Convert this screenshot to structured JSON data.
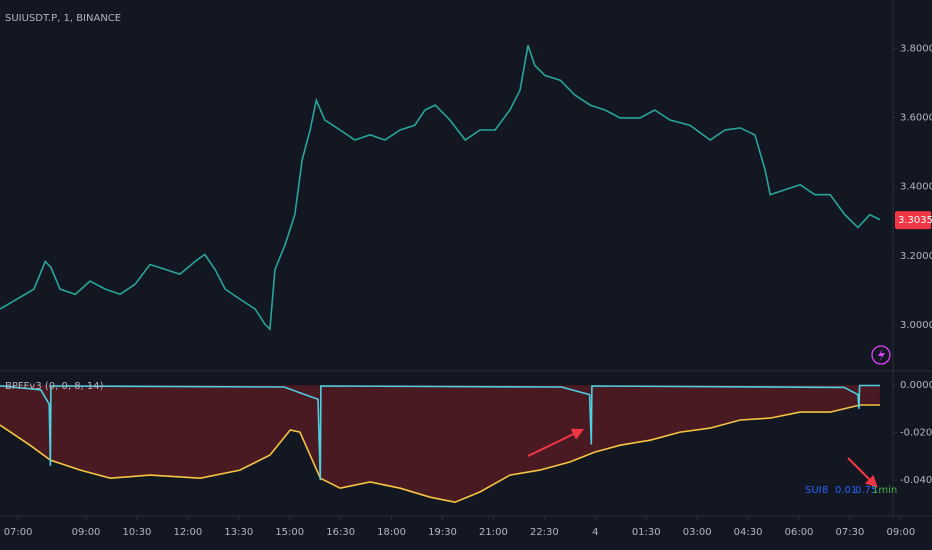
{
  "chart_data": [
    {
      "type": "line",
      "title": "SUIUSDT.P, 1, BINANCE",
      "color": "#26a69a",
      "x": [
        -32,
        -2,
        28,
        48,
        58,
        74,
        101,
        127,
        154,
        180,
        207,
        233,
        260,
        286,
        313,
        330,
        348,
        366,
        392,
        419,
        436,
        445,
        454,
        472,
        489,
        502,
        516,
        527,
        542,
        569,
        595,
        622,
        648,
        675,
        701,
        719,
        737,
        763,
        790,
        816,
        843,
        869,
        887,
        901,
        913,
        931,
        958,
        984,
        1011,
        1037,
        1064,
        1099,
        1125,
        1152,
        1187,
        1223,
        1249,
        1276,
        1302,
        1320,
        1329,
        1355,
        1382,
        1408,
        1435,
        1461,
        1484,
        1505,
        1523
      ],
      "values": [
        3.046,
        3.075,
        3.104,
        3.184,
        3.167,
        3.104,
        3.089,
        3.127,
        3.104,
        3.089,
        3.118,
        3.175,
        3.161,
        3.147,
        3.184,
        3.204,
        3.161,
        3.104,
        3.075,
        3.046,
        3.003,
        2.988,
        3.161,
        3.233,
        3.319,
        3.478,
        3.564,
        3.65,
        3.593,
        3.564,
        3.535,
        3.55,
        3.535,
        3.564,
        3.578,
        3.622,
        3.636,
        3.593,
        3.535,
        3.564,
        3.564,
        3.622,
        3.679,
        3.809,
        3.751,
        3.722,
        3.708,
        3.665,
        3.636,
        3.622,
        3.599,
        3.599,
        3.622,
        3.593,
        3.578,
        3.535,
        3.564,
        3.57,
        3.55,
        3.449,
        3.377,
        3.391,
        3.406,
        3.377,
        3.377,
        3.319,
        3.282,
        3.319,
        3.305
      ],
      "last_price": 3.3035,
      "last_price_color": "#f23645",
      "xlim": [
        -32,
        1615
      ],
      "ylim": [
        2.87,
        3.94
      ],
      "yticks": [
        {
          "value": 3.0,
          "label": "3.0000"
        },
        {
          "value": 3.2,
          "label": "3.2000"
        },
        {
          "value": 3.4,
          "label": "3.4000"
        },
        {
          "value": 3.6,
          "label": "3.6000"
        },
        {
          "value": 3.8,
          "label": "3.8000"
        }
      ],
      "xticks": [
        {
          "value": 0,
          "label": "07:00"
        },
        {
          "value": 120,
          "label": "09:00"
        },
        {
          "value": 210,
          "label": "10:30"
        },
        {
          "value": 300,
          "label": "12:00"
        },
        {
          "value": 390,
          "label": "13:30"
        },
        {
          "value": 480,
          "label": "15:00"
        },
        {
          "value": 570,
          "label": "16:30"
        },
        {
          "value": 660,
          "label": "18:00"
        },
        {
          "value": 750,
          "label": "19:30"
        },
        {
          "value": 840,
          "label": "21:00"
        },
        {
          "value": 930,
          "label": "22:30"
        },
        {
          "value": 1020,
          "label": "4"
        },
        {
          "value": 1110,
          "label": "01:30"
        },
        {
          "value": 1200,
          "label": "03:00"
        },
        {
          "value": 1290,
          "label": "04:30"
        },
        {
          "value": 1380,
          "label": "06:00"
        },
        {
          "value": 1470,
          "label": "07:30"
        },
        {
          "value": 1560,
          "label": "09:00"
        }
      ]
    },
    {
      "type": "line",
      "title": "BPFFv3 (0, 0, 8, 14)",
      "xlim": [
        -32,
        1615
      ],
      "ylim": [
        -0.0547,
        0.0055
      ],
      "yticks": [
        {
          "value": 0,
          "label": "0.0000"
        },
        {
          "value": -0.02,
          "label": "-0.0200"
        },
        {
          "value": -0.04,
          "label": "-0.0400"
        }
      ],
      "series": [
        {
          "color": "#f5c542",
          "fill": "#4a1a22",
          "x": [
            -32,
            21,
            57,
            110,
            163,
            233,
            322,
            392,
            445,
            481,
            498,
            516,
            534,
            569,
            622,
            675,
            728,
            772,
            816,
            869,
            922,
            975,
            1019,
            1064,
            1117,
            1170,
            1223,
            1276,
            1329,
            1382,
            1435,
            1488,
            1523
          ],
          "values": [
            -0.0168,
            -0.0253,
            -0.0316,
            -0.0358,
            -0.0392,
            -0.0379,
            -0.0392,
            -0.0358,
            -0.0295,
            -0.0189,
            -0.0198,
            -0.0295,
            -0.0392,
            -0.0434,
            -0.0408,
            -0.0434,
            -0.0472,
            -0.0493,
            -0.045,
            -0.0379,
            -0.0358,
            -0.0324,
            -0.0282,
            -0.0253,
            -0.0232,
            -0.0198,
            -0.0181,
            -0.0147,
            -0.0139,
            -0.0114,
            -0.0114,
            -0.0084,
            -0.0084
          ]
        },
        {
          "color": "#4dd0e1",
          "x": [
            -32,
            40,
            55,
            57,
            58,
            470,
            530,
            534,
            535,
            960,
            1010,
            1013,
            1014,
            1460,
            1484,
            1486,
            1487,
            1523
          ],
          "values": [
            -0.0003,
            -0.002,
            -0.008,
            -0.034,
            -0.0004,
            -0.0008,
            -0.006,
            -0.04,
            -0.0004,
            -0.0008,
            -0.004,
            -0.025,
            -0.0004,
            -0.001,
            -0.004,
            -0.01,
            -0.0002,
            -0.0002
          ]
        }
      ],
      "params": [
        "SUI",
        "8",
        "0.01",
        "0.75"
      ],
      "params_color": "#2962ff",
      "interval": "1min",
      "interval_color": "#4caf50"
    }
  ]
}
